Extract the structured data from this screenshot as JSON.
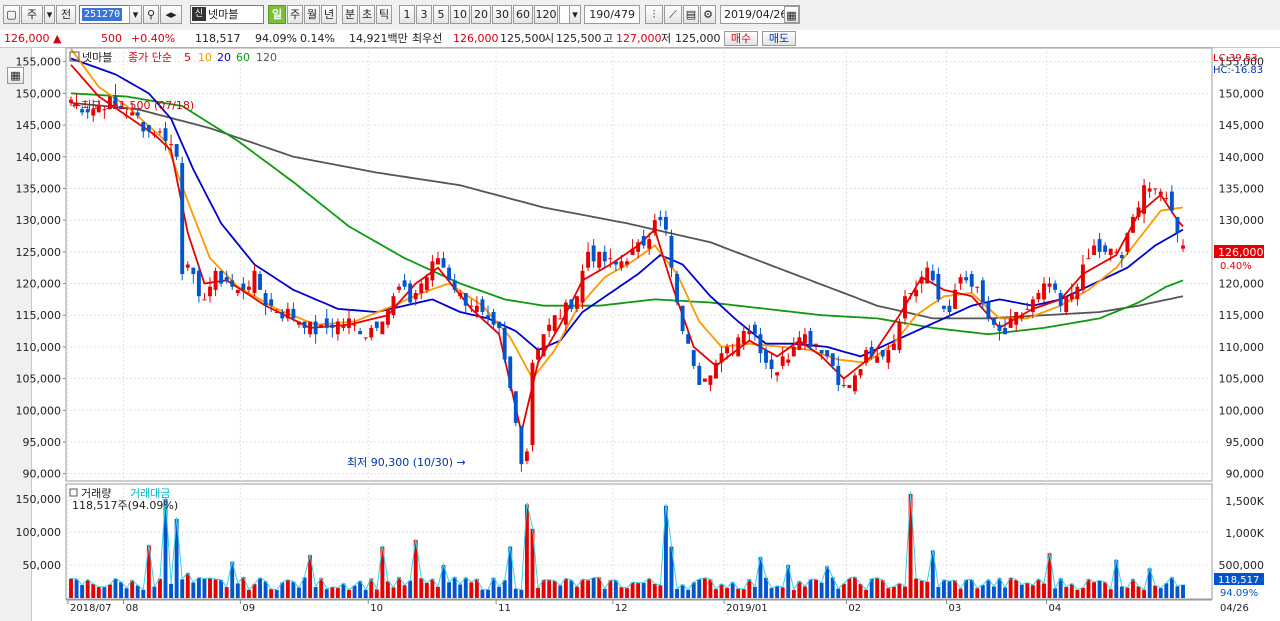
{
  "toolbar": {
    "market": "주",
    "market_full": "전",
    "code": "251270",
    "stock_name": "넷마블",
    "stock_badge": "신",
    "periods": [
      "일",
      "주",
      "월",
      "년",
      "분",
      "초",
      "틱"
    ],
    "intervals": [
      "1",
      "3",
      "5",
      "10",
      "20",
      "30",
      "60",
      "120"
    ],
    "count": "190/479",
    "date": "2019/04/26"
  },
  "quote": {
    "price": "126,000",
    "change": "500",
    "change_pct": "+0.40%",
    "volume": "118,517",
    "volume_ratio": "94.09%",
    "turnover": "0.14%",
    "amount": "14,921백만",
    "best_ask_label": "최우선",
    "best_ask": "126,000",
    "best_bid": "125,500",
    "open_label": "시",
    "open": "125,500",
    "high_label": "고",
    "high": "127,000",
    "low_label": "저",
    "low": "125,000",
    "buy_label": "매수",
    "sell_label": "매도"
  },
  "price_panel": {
    "title": "넷마블",
    "ma_label": "종가 단순",
    "ma_periods": [
      "5",
      "10",
      "20",
      "60",
      "120"
    ],
    "ma_colors": [
      "#e60000",
      "#ff9900",
      "#0000cc",
      "#119911",
      "#555555"
    ],
    "lc": "LC:39.53",
    "hc": "HC:-16.83",
    "high_marker": "최고 151,500 (07/18)",
    "low_marker": "최저 90,300 (10/30)",
    "current_price": "126,000",
    "current_change": "0.40%",
    "y_ticks": [
      "155,000",
      "150,000",
      "145,000",
      "140,000",
      "135,000",
      "130,000",
      "125,000",
      "120,000",
      "115,000",
      "110,000",
      "105,000",
      "100,000",
      "95,000",
      "90,000"
    ]
  },
  "volume_panel": {
    "title_vol": "거래량",
    "title_amount": "거래대금",
    "volume_info": "118,517주(94.09%)",
    "left_ticks": [
      "150,000",
      "100,000",
      "50,000"
    ],
    "right_ticks": [
      "1,500K",
      "1,000K",
      "500,000"
    ],
    "current_volume": "118,517",
    "current_ratio": "94.09%"
  },
  "x_axis": {
    "labels": [
      "2018/07",
      "08",
      "09",
      "10",
      "11",
      "12",
      "2019/01",
      "02",
      "03",
      "04"
    ],
    "end_label": "04/26"
  },
  "colors": {
    "up": "#e60000",
    "down": "#0055cc",
    "ma5": "#e60000",
    "ma10": "#ff9900",
    "ma20": "#0000cc",
    "ma60": "#119911",
    "ma120": "#555555"
  },
  "chart_data": {
    "type": "candlestick",
    "title": "넷마블",
    "ylim": [
      89000,
      157000
    ],
    "high": {
      "value": 151500,
      "date": "07/18"
    },
    "low": {
      "value": 90300,
      "date": "10/30"
    },
    "last": {
      "open": 125500,
      "high": 127000,
      "low": 125000,
      "close": 126000
    },
    "close_anchors": [
      [
        0,
        149000
      ],
      [
        3,
        147500
      ],
      [
        7,
        148500
      ],
      [
        10,
        147000
      ],
      [
        12,
        146000
      ],
      [
        14,
        144000
      ],
      [
        17,
        143500
      ],
      [
        19,
        140000
      ],
      [
        20,
        122000
      ],
      [
        21,
        124000
      ],
      [
        23,
        117000
      ],
      [
        26,
        121000
      ],
      [
        28,
        120500
      ],
      [
        30,
        118500
      ],
      [
        33,
        121000
      ],
      [
        35,
        117000
      ],
      [
        38,
        115500
      ],
      [
        40,
        115000
      ],
      [
        44,
        112500
      ],
      [
        47,
        113500
      ],
      [
        50,
        114000
      ],
      [
        53,
        112000
      ],
      [
        56,
        115000
      ],
      [
        59,
        119000
      ],
      [
        61,
        117500
      ],
      [
        63,
        120000
      ],
      [
        66,
        124000
      ],
      [
        68,
        121000
      ],
      [
        70,
        118000
      ],
      [
        72,
        117000
      ],
      [
        75,
        113500
      ],
      [
        77,
        112000
      ],
      [
        79,
        103000
      ],
      [
        81,
        92500
      ],
      [
        82,
        94000
      ],
      [
        83,
        108000
      ],
      [
        85,
        112000
      ],
      [
        87,
        114500
      ],
      [
        89,
        116000
      ],
      [
        91,
        118500
      ],
      [
        93,
        125000
      ],
      [
        95,
        124000
      ],
      [
        98,
        123000
      ],
      [
        100,
        124500
      ],
      [
        102,
        125500
      ],
      [
        104,
        128000
      ],
      [
        105,
        131000
      ],
      [
        107,
        128000
      ],
      [
        109,
        116000
      ],
      [
        111,
        110000
      ],
      [
        113,
        105000
      ],
      [
        115,
        106500
      ],
      [
        117,
        108500
      ],
      [
        119,
        110000
      ],
      [
        121,
        113500
      ],
      [
        123,
        112000
      ],
      [
        125,
        108000
      ],
      [
        127,
        106500
      ],
      [
        129,
        109000
      ],
      [
        131,
        112500
      ],
      [
        133,
        111000
      ],
      [
        135,
        110000
      ],
      [
        137,
        107000
      ],
      [
        139,
        103500
      ],
      [
        141,
        105000
      ],
      [
        143,
        108500
      ],
      [
        145,
        108000
      ],
      [
        147,
        110000
      ],
      [
        149,
        113000
      ],
      [
        150,
        119000
      ],
      [
        152,
        119500
      ],
      [
        154,
        123500
      ],
      [
        156,
        117500
      ],
      [
        158,
        115500
      ],
      [
        160,
        121000
      ],
      [
        162,
        120500
      ],
      [
        164,
        116500
      ],
      [
        166,
        112500
      ],
      [
        168,
        112000
      ],
      [
        170,
        114500
      ],
      [
        172,
        116000
      ],
      [
        174,
        118000
      ],
      [
        176,
        120000
      ],
      [
        178,
        116000
      ],
      [
        180,
        118500
      ],
      [
        182,
        122000
      ],
      [
        184,
        125500
      ],
      [
        186,
        124500
      ],
      [
        188,
        125000
      ],
      [
        189,
        124000
      ],
      [
        191,
        130000
      ],
      [
        193,
        136000
      ],
      [
        195,
        134000
      ],
      [
        197,
        134500
      ],
      [
        198,
        131000
      ],
      [
        199,
        128500
      ],
      [
        200,
        126000
      ]
    ],
    "ma": {
      "ma5": [
        [
          0,
          154500
        ],
        [
          5,
          149500
        ],
        [
          10,
          146500
        ],
        [
          15,
          143500
        ],
        [
          18,
          141000
        ],
        [
          21,
          128000
        ],
        [
          24,
          120000
        ],
        [
          28,
          120500
        ],
        [
          35,
          116500
        ],
        [
          43,
          113000
        ],
        [
          50,
          113500
        ],
        [
          57,
          115000
        ],
        [
          62,
          120000
        ],
        [
          66,
          122500
        ],
        [
          72,
          116000
        ],
        [
          77,
          112000
        ],
        [
          81,
          96500
        ],
        [
          84,
          107500
        ],
        [
          88,
          113500
        ],
        [
          92,
          120500
        ],
        [
          97,
          123000
        ],
        [
          102,
          126000
        ],
        [
          105,
          128500
        ],
        [
          108,
          120000
        ],
        [
          112,
          110000
        ],
        [
          116,
          107000
        ],
        [
          122,
          111000
        ],
        [
          127,
          108500
        ],
        [
          131,
          111000
        ],
        [
          135,
          108500
        ],
        [
          139,
          105000
        ],
        [
          144,
          108500
        ],
        [
          149,
          115000
        ],
        [
          153,
          121000
        ],
        [
          157,
          119000
        ],
        [
          162,
          118000
        ],
        [
          167,
          113000
        ],
        [
          173,
          116000
        ],
        [
          178,
          117500
        ],
        [
          182,
          121500
        ],
        [
          188,
          124500
        ],
        [
          192,
          131000
        ],
        [
          196,
          134000
        ],
        [
          199,
          130000
        ],
        [
          200,
          129000
        ]
      ],
      "ma10": [
        [
          0,
          157000
        ],
        [
          5,
          151000
        ],
        [
          10,
          148000
        ],
        [
          17,
          142500
        ],
        [
          21,
          133000
        ],
        [
          25,
          124000
        ],
        [
          30,
          119500
        ],
        [
          37,
          116000
        ],
        [
          44,
          113500
        ],
        [
          51,
          114000
        ],
        [
          58,
          116500
        ],
        [
          63,
          118500
        ],
        [
          68,
          120000
        ],
        [
          74,
          116500
        ],
        [
          79,
          111500
        ],
        [
          83,
          105000
        ],
        [
          87,
          109500
        ],
        [
          91,
          116000
        ],
        [
          96,
          121000
        ],
        [
          101,
          123500
        ],
        [
          105,
          126000
        ],
        [
          109,
          121500
        ],
        [
          113,
          114000
        ],
        [
          117,
          110000
        ],
        [
          122,
          110500
        ],
        [
          128,
          110000
        ],
        [
          133,
          109500
        ],
        [
          138,
          108000
        ],
        [
          143,
          107500
        ],
        [
          148,
          110500
        ],
        [
          152,
          115000
        ],
        [
          157,
          118000
        ],
        [
          162,
          118500
        ],
        [
          167,
          114500
        ],
        [
          172,
          114500
        ],
        [
          178,
          116500
        ],
        [
          183,
          119000
        ],
        [
          188,
          122500
        ],
        [
          192,
          127000
        ],
        [
          196,
          131500
        ],
        [
          200,
          132000
        ]
      ],
      "ma20": [
        [
          0,
          155500
        ],
        [
          8,
          153000
        ],
        [
          14,
          150000
        ],
        [
          18,
          146000
        ],
        [
          22,
          138000
        ],
        [
          27,
          129500
        ],
        [
          33,
          123000
        ],
        [
          40,
          119000
        ],
        [
          48,
          116000
        ],
        [
          55,
          115500
        ],
        [
          60,
          116500
        ],
        [
          65,
          117500
        ],
        [
          70,
          115500
        ],
        [
          75,
          114500
        ],
        [
          80,
          112500
        ],
        [
          84,
          109500
        ],
        [
          88,
          111000
        ],
        [
          92,
          115500
        ],
        [
          97,
          118500
        ],
        [
          102,
          121500
        ],
        [
          106,
          124500
        ],
        [
          110,
          123000
        ],
        [
          115,
          118000
        ],
        [
          120,
          114000
        ],
        [
          125,
          110500
        ],
        [
          130,
          110500
        ],
        [
          136,
          110000
        ],
        [
          142,
          108500
        ],
        [
          147,
          110500
        ],
        [
          152,
          112500
        ],
        [
          157,
          114500
        ],
        [
          162,
          116500
        ],
        [
          167,
          117500
        ],
        [
          173,
          116500
        ],
        [
          178,
          117500
        ],
        [
          184,
          120000
        ],
        [
          190,
          122500
        ],
        [
          195,
          126000
        ],
        [
          200,
          128500
        ]
      ],
      "ma60": [
        [
          0,
          150000
        ],
        [
          10,
          149500
        ],
        [
          20,
          148000
        ],
        [
          30,
          142500
        ],
        [
          40,
          136000
        ],
        [
          50,
          129000
        ],
        [
          60,
          124000
        ],
        [
          70,
          120000
        ],
        [
          78,
          117500
        ],
        [
          85,
          116500
        ],
        [
          95,
          116500
        ],
        [
          105,
          117500
        ],
        [
          115,
          117000
        ],
        [
          125,
          116000
        ],
        [
          135,
          115000
        ],
        [
          145,
          114500
        ],
        [
          155,
          113000
        ],
        [
          165,
          112000
        ],
        [
          175,
          113000
        ],
        [
          185,
          114500
        ],
        [
          192,
          117000
        ],
        [
          197,
          119500
        ],
        [
          200,
          120500
        ]
      ],
      "ma120": [
        [
          0,
          148500
        ],
        [
          12,
          147500
        ],
        [
          25,
          144500
        ],
        [
          40,
          140000
        ],
        [
          55,
          137500
        ],
        [
          70,
          135500
        ],
        [
          85,
          132000
        ],
        [
          100,
          129500
        ],
        [
          115,
          126500
        ],
        [
          130,
          121500
        ],
        [
          145,
          116500
        ],
        [
          155,
          114500
        ],
        [
          165,
          114500
        ],
        [
          175,
          115000
        ],
        [
          185,
          115500
        ],
        [
          192,
          116500
        ],
        [
          200,
          118000
        ]
      ]
    },
    "volume": {
      "ylim_left": [
        0,
        170000
      ],
      "spikes": [
        [
          14,
          80000
        ],
        [
          17,
          150000
        ],
        [
          19,
          120000
        ],
        [
          21,
          38000
        ],
        [
          29,
          55000
        ],
        [
          43,
          65000
        ],
        [
          56,
          78000
        ],
        [
          62,
          88000
        ],
        [
          67,
          50000
        ],
        [
          79,
          78000
        ],
        [
          82,
          142000
        ],
        [
          83,
          105000
        ],
        [
          107,
          140000
        ],
        [
          108,
          78000
        ],
        [
          124,
          62000
        ],
        [
          129,
          50000
        ],
        [
          136,
          48000
        ],
        [
          151,
          158000
        ],
        [
          155,
          72000
        ],
        [
          176,
          68000
        ],
        [
          188,
          58000
        ],
        [
          194,
          45000
        ]
      ],
      "base": 22000
    },
    "x_label_index": {
      "2018/07": 0,
      "08": 10,
      "09": 31,
      "10": 54,
      "11": 77,
      "12": 98,
      "2019/01": 118,
      "02": 140,
      "03": 158,
      "04": 176
    }
  }
}
